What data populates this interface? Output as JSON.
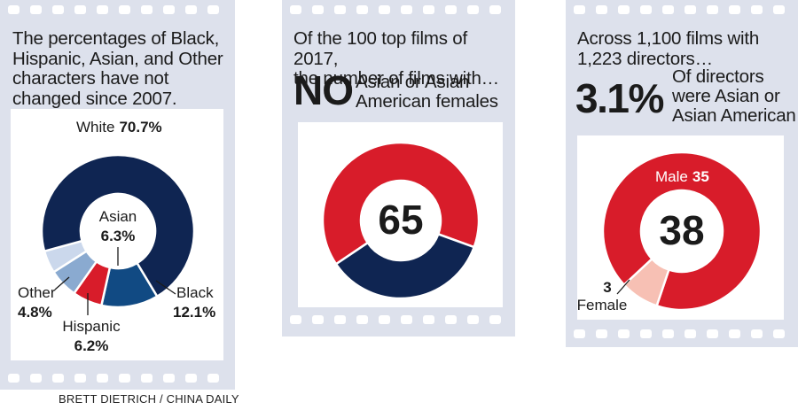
{
  "panels": [
    {
      "lede": [
        "The percentages of Black,",
        "Hispanic, Asian, and Other",
        "characters have not",
        "changed since 2007."
      ]
    },
    {
      "lede": [
        "Of the 100 top films of 2017,",
        "the number of films with…"
      ],
      "big": "NO",
      "sub": [
        "Asian or Asian",
        "American females"
      ]
    },
    {
      "lede": [
        "Across 1,100 films with",
        "1,223 directors…"
      ],
      "big": "3.1%",
      "sub": [
        "Of directors",
        "were Asian or",
        "Asian American"
      ]
    }
  ],
  "credit": "BRETT DIETRICH  / CHINA DAILY",
  "colors": {
    "navy": "#0f2552",
    "blue": "#114a83",
    "lightblue": "#8aaad0",
    "paleblue": "#cbd8ec",
    "red": "#d81c2a",
    "pink": "#f7c0b4",
    "strip": "#dde1ec"
  },
  "chart_data": [
    {
      "type": "pie",
      "slices": [
        {
          "label": "White",
          "value": 70.7,
          "value_label": "70.7%",
          "color": "#0f2552"
        },
        {
          "label": "Black",
          "value": 12.1,
          "value_label": "12.1%",
          "color": "#114a83"
        },
        {
          "label": "Asian",
          "value": 6.3,
          "value_label": "6.3%",
          "color": "#d81c2a"
        },
        {
          "label": "Hispanic",
          "value": 6.2,
          "value_label": "6.2%",
          "color": "#8aaad0"
        },
        {
          "label": "Other",
          "value": 4.8,
          "value_label": "4.8%",
          "color": "#cbd8ec"
        }
      ]
    },
    {
      "type": "pie",
      "center_label": "65",
      "slices": [
        {
          "label": "",
          "value": 65,
          "color": "#d81c2a"
        },
        {
          "label": "",
          "value": 35,
          "color": "#0f2552"
        }
      ]
    },
    {
      "type": "pie",
      "center_label": "38",
      "slices": [
        {
          "label": "Male",
          "value": 35,
          "value_label": "35",
          "color": "#d81c2a"
        },
        {
          "label": "Female",
          "value": 3,
          "value_label": "3",
          "color": "#f7c0b4"
        }
      ]
    }
  ]
}
